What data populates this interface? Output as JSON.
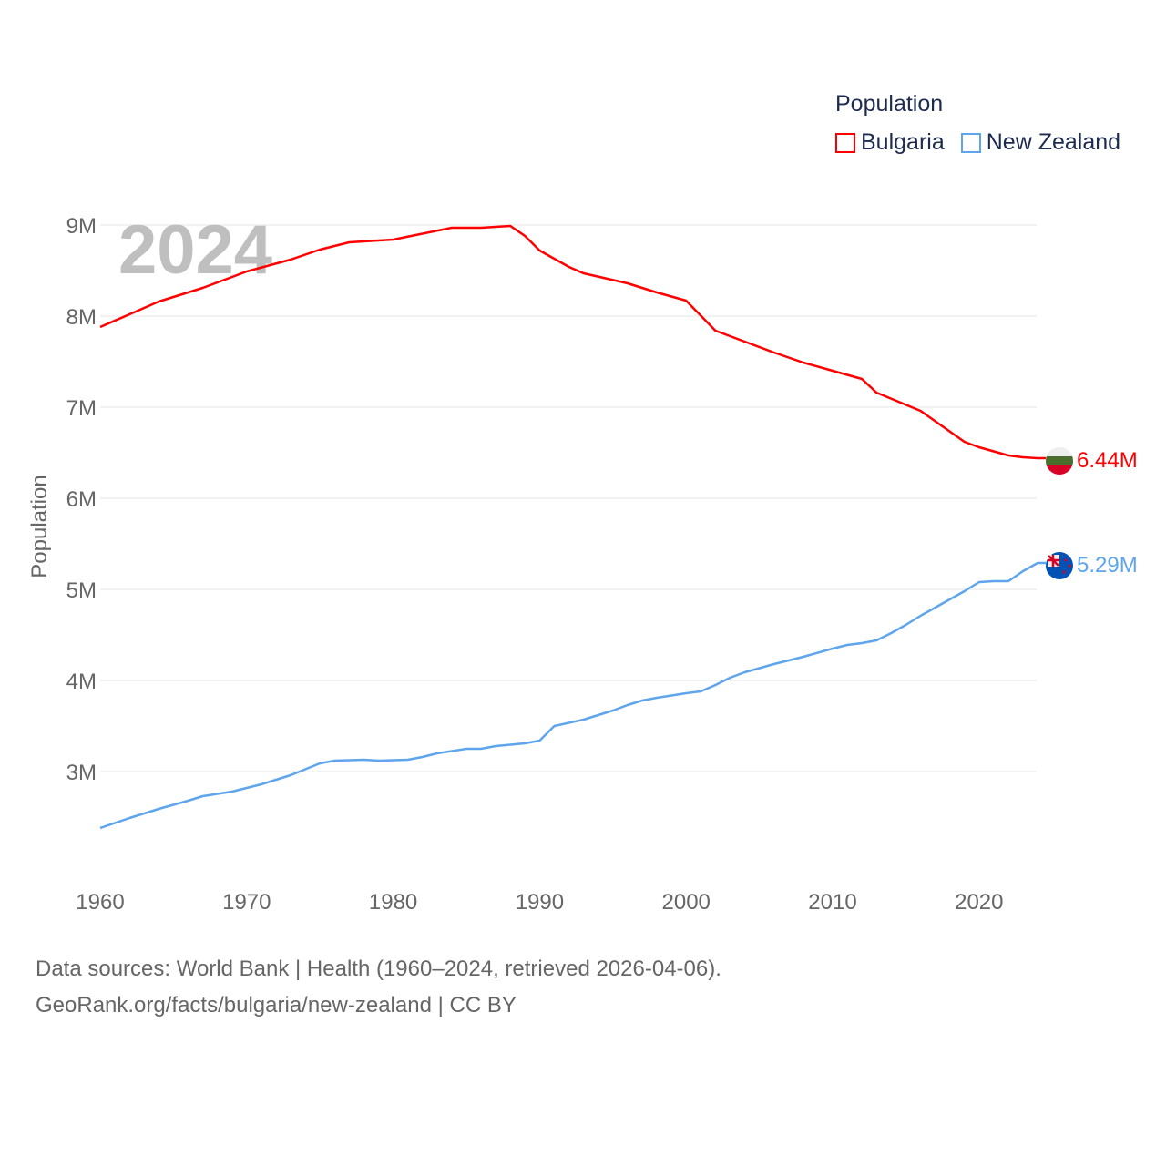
{
  "chart_data": {
    "type": "line",
    "title": "",
    "legend_title": "Population",
    "legend_position": "top-right",
    "ylabel": "Population",
    "xlabel": "",
    "watermark_year": "2024",
    "xlim": [
      1960,
      2024
    ],
    "ylim": [
      2.0,
      9.0
    ],
    "y_unit": "millions",
    "grid": true,
    "x_ticks": [
      "1960",
      "1970",
      "1980",
      "1990",
      "2000",
      "2010",
      "2020"
    ],
    "y_ticks": [
      "3M",
      "4M",
      "5M",
      "6M",
      "7M",
      "8M",
      "9M"
    ],
    "series": [
      {
        "name": "Bulgaria",
        "color": "#ff0000",
        "end_label": "6.44M",
        "x": [
          1960,
          1962,
          1964,
          1967,
          1970,
          1973,
          1975,
          1977,
          1980,
          1984,
          1986,
          1988,
          1989,
          1990,
          1992,
          1993,
          1996,
          1998,
          2000,
          2002,
          2004,
          2006,
          2008,
          2010,
          2012,
          2013,
          2016,
          2019,
          2020,
          2022,
          2023,
          2024
        ],
        "values": [
          7.88,
          8.02,
          8.16,
          8.31,
          8.49,
          8.62,
          8.73,
          8.81,
          8.84,
          8.97,
          8.97,
          8.99,
          8.88,
          8.72,
          8.54,
          8.47,
          8.36,
          8.26,
          8.17,
          7.84,
          7.72,
          7.6,
          7.49,
          7.4,
          7.31,
          7.16,
          6.96,
          6.62,
          6.56,
          6.47,
          6.45,
          6.44
        ]
      },
      {
        "name": "New Zealand",
        "color": "#5ea5ec",
        "end_label": "5.29M",
        "x": [
          1960,
          1962,
          1964,
          1966,
          1967,
          1969,
          1971,
          1973,
          1975,
          1976,
          1978,
          1979,
          1981,
          1982,
          1983,
          1985,
          1986,
          1987,
          1989,
          1990,
          1991,
          1993,
          1995,
          1996,
          1997,
          1998,
          2000,
          2001,
          2002,
          2003,
          2004,
          2006,
          2008,
          2010,
          2011,
          2012,
          2013,
          2014,
          2015,
          2016,
          2017,
          2018,
          2019,
          2020,
          2021,
          2022,
          2023,
          2024
        ],
        "values": [
          2.38,
          2.49,
          2.59,
          2.68,
          2.73,
          2.78,
          2.86,
          2.96,
          3.09,
          3.12,
          3.13,
          3.12,
          3.13,
          3.16,
          3.2,
          3.25,
          3.25,
          3.28,
          3.31,
          3.34,
          3.5,
          3.57,
          3.67,
          3.73,
          3.78,
          3.81,
          3.86,
          3.88,
          3.95,
          4.03,
          4.09,
          4.18,
          4.26,
          4.35,
          4.39,
          4.41,
          4.44,
          4.52,
          4.61,
          4.71,
          4.8,
          4.89,
          4.98,
          5.08,
          5.09,
          5.09,
          5.2,
          5.29
        ]
      }
    ]
  },
  "footer": {
    "line1": "Data sources: World Bank | Health (1960–2024, retrieved 2026-04-06).",
    "line2": "GeoRank.org/facts/bulgaria/new-zealand | CC BY"
  }
}
